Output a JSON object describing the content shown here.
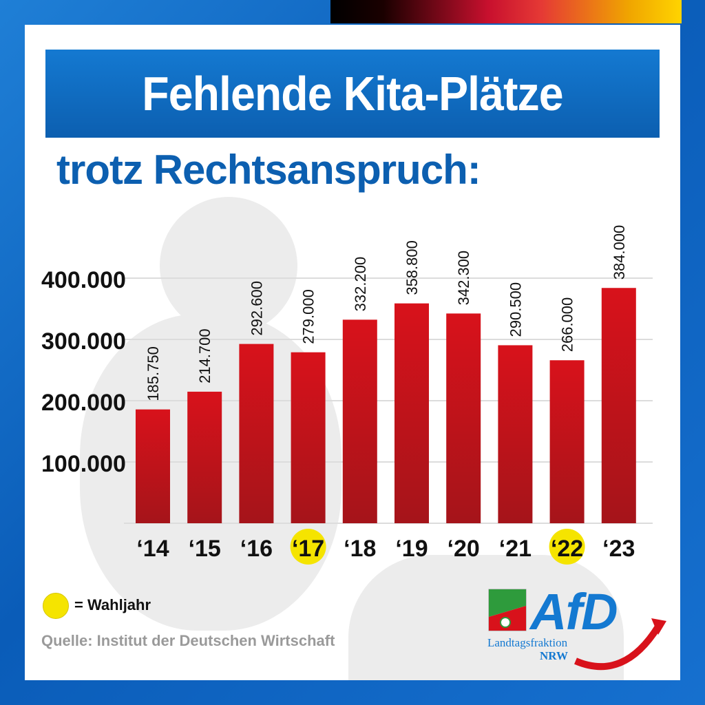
{
  "header": {
    "title": "Fehlende Kita-Plätze",
    "subtitle": "trotz Rechtsanspruch:"
  },
  "legend": {
    "label": "= Wahljahr",
    "marker_color": "#f5e400"
  },
  "source": "Quelle: Institut der Deutschen Wirtschaft",
  "logo": {
    "name": "AfD",
    "line1": "Landtagsfraktion",
    "line2": "NRW",
    "brand_color": "#1479d1"
  },
  "colors": {
    "bar": "#d8121b",
    "bar_dark": "#a5141a",
    "accent_blue": "#0c5fb0",
    "highlight": "#f5e400"
  },
  "chart_data": {
    "type": "bar",
    "title": "Fehlende Kita-Plätze",
    "subtitle": "trotz Rechtsanspruch:",
    "categories": [
      "‘14",
      "‘15",
      "‘16",
      "‘17",
      "‘18",
      "‘19",
      "‘20",
      "‘21",
      "‘22",
      "‘23"
    ],
    "values": [
      185750,
      214700,
      292600,
      279000,
      332200,
      358800,
      342300,
      290500,
      266000,
      384000
    ],
    "value_labels": [
      "185.750",
      "214.700",
      "292.600",
      "279.000",
      "332.200",
      "358.800",
      "342.300",
      "290.500",
      "266.000",
      "384.000"
    ],
    "highlighted_categories": [
      "‘17",
      "‘22"
    ],
    "y_ticks": [
      100000,
      200000,
      300000,
      400000
    ],
    "y_tick_labels": [
      "100.000",
      "200.000",
      "300.000",
      "400.000"
    ],
    "ylim": [
      0,
      400000
    ],
    "grid": true,
    "xlabel": "",
    "ylabel": ""
  }
}
